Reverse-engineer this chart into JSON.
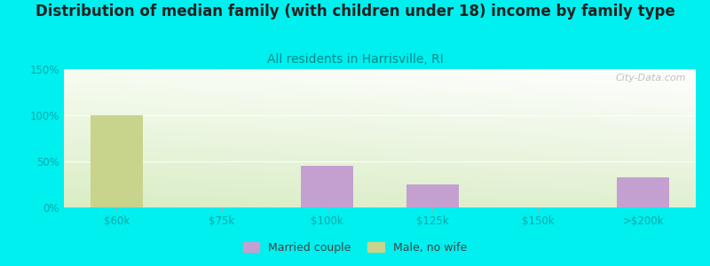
{
  "title": "Distribution of median family (with children under 18) income by family type",
  "subtitle": "All residents in Harrisville, RI",
  "background_color": "#00EFEF",
  "categories": [
    "$60k",
    "$75k",
    "$100k",
    "$125k",
    "$150k",
    ">$200k"
  ],
  "married_couple": [
    0,
    0,
    45,
    25,
    0,
    33
  ],
  "male_no_wife": [
    100,
    0,
    0,
    0,
    0,
    0
  ],
  "married_color": "#C4A0D0",
  "male_color": "#C8D48C",
  "ylim": [
    0,
    150
  ],
  "yticks": [
    0,
    50,
    100,
    150
  ],
  "ytick_labels": [
    "0%",
    "50%",
    "100%",
    "150%"
  ],
  "bar_width": 0.5,
  "watermark": "City-Data.com",
  "title_fontsize": 12,
  "subtitle_fontsize": 10,
  "subtitle_color": "#008888",
  "tick_label_color": "#00AAAA",
  "yticklabel_color": "#00AAAA",
  "grid_color": "#cccccc",
  "gradient_topleft": [
    0.97,
    1.0,
    0.97
  ],
  "gradient_bottomright": [
    0.85,
    0.93,
    0.85
  ]
}
